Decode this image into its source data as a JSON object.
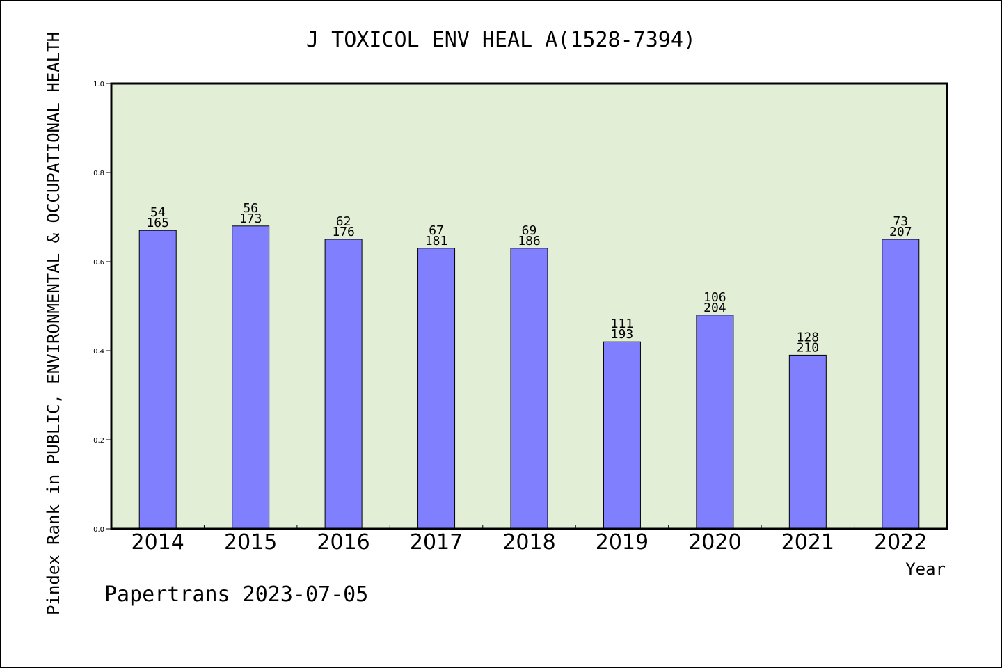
{
  "chart_data": {
    "type": "bar",
    "title": "J TOXICOL ENV HEAL A(1528-7394)",
    "xlabel": "Year",
    "ylabel": "Pindex Rank in PUBLIC, ENVIRONMENTAL & OCCUPATIONAL HEALTH",
    "ylim": [
      0,
      1.0
    ],
    "yticks": [
      "0.0",
      "0.2",
      "0.4",
      "0.6",
      "0.8",
      "1.0"
    ],
    "grid": false,
    "categories": [
      "2014",
      "2015",
      "2016",
      "2017",
      "2018",
      "2019",
      "2020",
      "2021",
      "2022"
    ],
    "values": [
      0.67,
      0.68,
      0.65,
      0.63,
      0.63,
      0.42,
      0.48,
      0.39,
      0.65
    ],
    "rank_labels": [
      "54",
      "56",
      "62",
      "67",
      "69",
      "111",
      "106",
      "128",
      "73"
    ],
    "total_labels": [
      "165",
      "173",
      "176",
      "181",
      "186",
      "193",
      "204",
      "210",
      "207"
    ],
    "colors": {
      "plot_bg": "#e2efd6",
      "bar": "#8080ff",
      "bar_stroke": "#000000"
    }
  },
  "footer": {
    "credit": "Papertrans 2023-07-05"
  }
}
